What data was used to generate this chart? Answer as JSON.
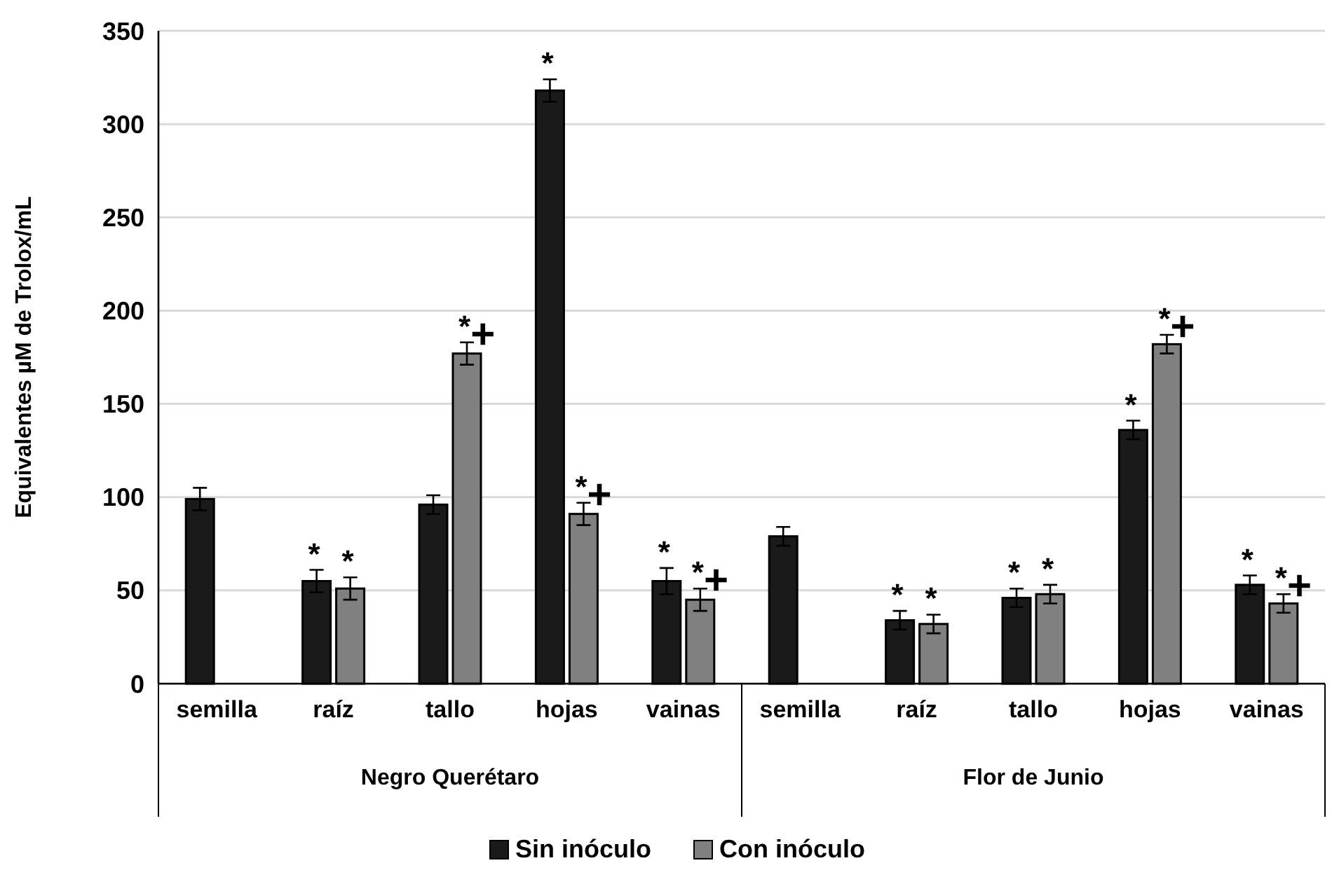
{
  "chart_data": {
    "type": "bar",
    "ylabel": "Equivalentes µM de Trolox/mL",
    "categories": [
      "semilla",
      "raíz",
      "tallo",
      "hojas",
      "vainas",
      "semilla",
      "raíz",
      "tallo",
      "hojas",
      "vainas"
    ],
    "series": [
      {
        "name": "Sin inóculo",
        "color": "#1a1a1a",
        "values": [
          99,
          55,
          96,
          318,
          55,
          79,
          34,
          46,
          136,
          53
        ],
        "errors": [
          6,
          6,
          5,
          6,
          7,
          5,
          5,
          5,
          5,
          5
        ],
        "value_labels": [
          null,
          "*",
          null,
          "*",
          "*",
          null,
          "*",
          "*",
          "*",
          "*"
        ]
      },
      {
        "name": "Con inóculo",
        "color": "#808080",
        "values": [
          null,
          51,
          177,
          91,
          45,
          null,
          32,
          48,
          182,
          43
        ],
        "errors": [
          null,
          6,
          6,
          6,
          6,
          null,
          5,
          5,
          5,
          5
        ],
        "value_labels": [
          null,
          "*",
          "*+",
          "*+",
          "*+",
          null,
          "*",
          "*",
          "*+",
          "*+"
        ]
      }
    ],
    "annotations": [
      "Negro Querétaro",
      "Flor de Junio"
    ],
    "ylim": [
      0,
      350
    ],
    "yticks": [
      0,
      50,
      100,
      150,
      200,
      250,
      300,
      350
    ],
    "grid": "y",
    "legend": "bottom"
  }
}
